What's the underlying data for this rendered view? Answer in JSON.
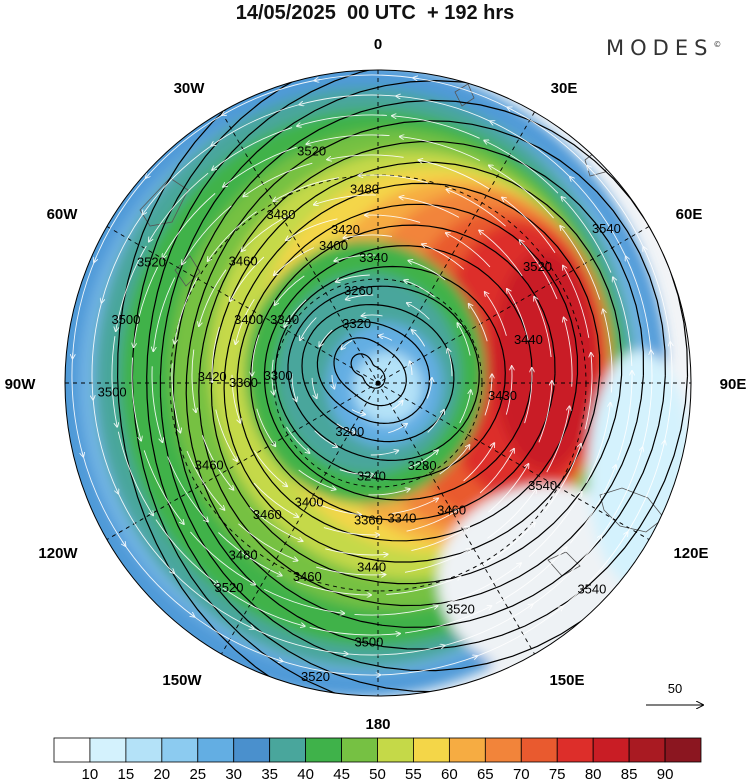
{
  "title": "14/05/2025  00 UTC  + 192 hrs",
  "brand": "MODES",
  "brand_mark": "©",
  "longitude_labels": {
    "n0": "0",
    "n30e": "30E",
    "n60e": "60E",
    "n90e": "90E",
    "n120e": "120E",
    "n150e": "150E",
    "n180": "180",
    "n150w": "150W",
    "n120w": "120W",
    "n90w": "90W",
    "n60w": "60W",
    "n30w": "30W"
  },
  "wind_reference_label": "50",
  "contour_levels": [
    3200,
    3240,
    3260,
    3280,
    3300,
    3340,
    3360,
    3400,
    3420,
    3440,
    3460,
    3480,
    3500,
    3520,
    3540
  ],
  "contour_labels": [
    {
      "text": "3520",
      "r": 0.77,
      "ang": -16
    },
    {
      "text": "3480",
      "r": 0.62,
      "ang": -30
    },
    {
      "text": "3480",
      "r": 0.62,
      "ang": -4
    },
    {
      "text": "3420",
      "r": 0.5,
      "ang": -12
    },
    {
      "text": "3340",
      "r": 0.4,
      "ang": -2
    },
    {
      "text": "3260",
      "r": 0.3,
      "ang": -12
    },
    {
      "text": "3400",
      "r": 0.46,
      "ang": -18
    },
    {
      "text": "3460",
      "r": 0.58,
      "ang": -48
    },
    {
      "text": "3520",
      "r": 0.82,
      "ang": -62
    },
    {
      "text": "3500",
      "r": 0.83,
      "ang": -76
    },
    {
      "text": "3400",
      "r": 0.46,
      "ang": -64
    },
    {
      "text": "3340",
      "r": 0.36,
      "ang": -56
    },
    {
      "text": "3320",
      "r": 0.2,
      "ang": -20
    },
    {
      "text": "3500",
      "r": 0.85,
      "ang": -92
    },
    {
      "text": "3420",
      "r": 0.53,
      "ang": -88
    },
    {
      "text": "3360",
      "r": 0.43,
      "ang": -90
    },
    {
      "text": "3300",
      "r": 0.32,
      "ang": -86
    },
    {
      "text": "3200",
      "r": 0.18,
      "ang": -150
    },
    {
      "text": "3240",
      "r": 0.3,
      "ang": -176
    },
    {
      "text": "3280",
      "r": 0.3,
      "ang": 152
    },
    {
      "text": "3460",
      "r": 0.6,
      "ang": -116
    },
    {
      "text": "3460",
      "r": 0.55,
      "ang": -140
    },
    {
      "text": "3400",
      "r": 0.44,
      "ang": -150
    },
    {
      "text": "3360",
      "r": 0.44,
      "ang": -176
    },
    {
      "text": "3340",
      "r": 0.44,
      "ang": 170
    },
    {
      "text": "3460",
      "r": 0.47,
      "ang": 150
    },
    {
      "text": "3480",
      "r": 0.7,
      "ang": -142
    },
    {
      "text": "3460",
      "r": 0.66,
      "ang": -160
    },
    {
      "text": "3440",
      "r": 0.59,
      "ang": -178
    },
    {
      "text": "3520",
      "r": 0.77,
      "ang": 160
    },
    {
      "text": "3500",
      "r": 0.83,
      "ang": -178
    },
    {
      "text": "3520",
      "r": 0.81,
      "ang": -144
    },
    {
      "text": "3520",
      "r": 0.96,
      "ang": -168
    },
    {
      "text": "3540",
      "r": 0.95,
      "ang": 134
    },
    {
      "text": "3540",
      "r": 0.62,
      "ang": 122
    },
    {
      "text": "3520",
      "r": 0.63,
      "ang": 54
    },
    {
      "text": "3540",
      "r": 0.88,
      "ang": 56
    },
    {
      "text": "3440",
      "r": 0.5,
      "ang": 74
    },
    {
      "text": "3430",
      "r": 0.4,
      "ang": 96
    }
  ],
  "colorbar": {
    "ticks": [
      "10",
      "15",
      "20",
      "25",
      "30",
      "35",
      "40",
      "45",
      "50",
      "55",
      "60",
      "65",
      "70",
      "75",
      "80",
      "85",
      "90"
    ],
    "colors": [
      "#ffffff",
      "#d4f2fd",
      "#b4e2f8",
      "#8ccbf0",
      "#63aee3",
      "#4a90cd",
      "#49a69c",
      "#3fb24a",
      "#76c143",
      "#c5d948",
      "#f4d648",
      "#f6ac42",
      "#f2843a",
      "#e95a2f",
      "#dd2e2a",
      "#c91d25",
      "#a91a22",
      "#8b1620"
    ]
  }
}
